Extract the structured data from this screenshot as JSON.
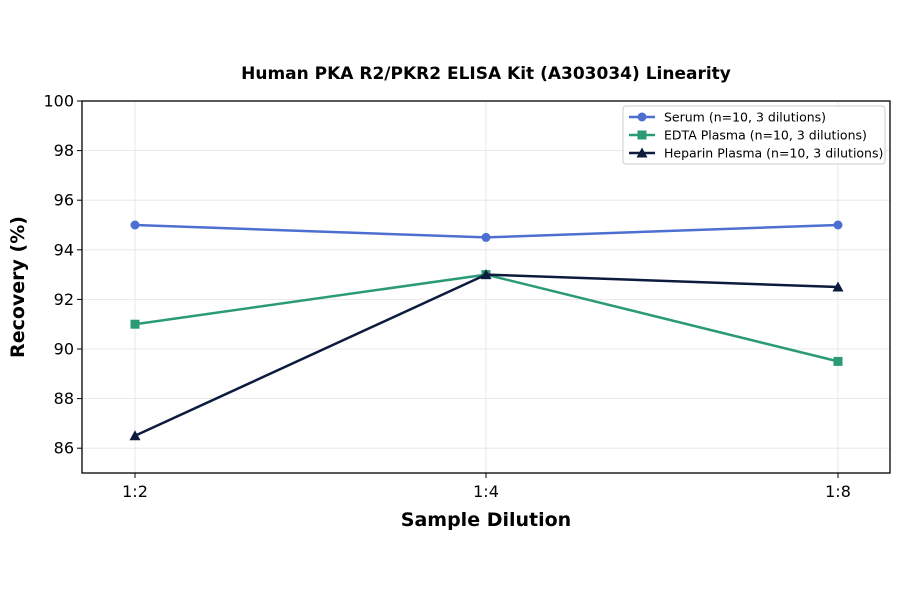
{
  "chart_data": {
    "type": "line",
    "title": "Human PKA R2/PKR2 ELISA Kit (A303034) Linearity",
    "xlabel": "Sample Dilution",
    "ylabel": "Recovery (%)",
    "categories": [
      "1:2",
      "1:4",
      "1:8"
    ],
    "ylim": [
      85,
      100
    ],
    "yticks": [
      86,
      88,
      90,
      92,
      94,
      96,
      98,
      100
    ],
    "grid": true,
    "legend_position": "top-right",
    "series": [
      {
        "name": "Serum (n=10, 3 dilutions)",
        "values": [
          95.0,
          94.5,
          95.0
        ],
        "color": "#4C6FD1",
        "marker": "circle"
      },
      {
        "name": "EDTA Plasma (n=10, 3 dilutions)",
        "values": [
          91.0,
          93.0,
          89.5
        ],
        "color": "#2A9A77",
        "marker": "square"
      },
      {
        "name": "Heparin Plasma (n=10, 3 dilutions)",
        "values": [
          86.5,
          93.0,
          92.5
        ],
        "color": "#0D1B3E",
        "marker": "triangle"
      }
    ]
  }
}
